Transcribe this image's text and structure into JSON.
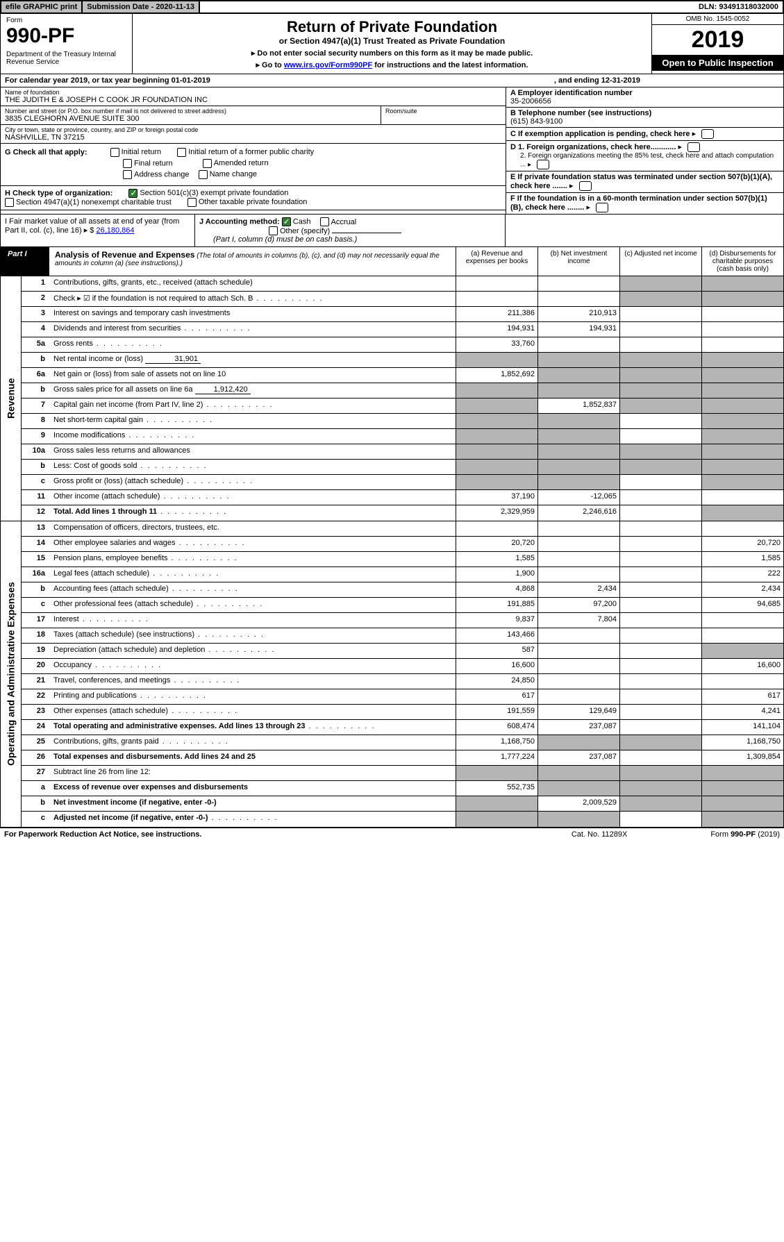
{
  "topbar": {
    "efile": "efile GRAPHIC print",
    "subdate_lbl": "Submission Date - 2020-11-13",
    "dln": "DLN: 93491318032000"
  },
  "header": {
    "form": "Form",
    "num": "990-PF",
    "dept": "Department of the Treasury\nInternal Revenue Service",
    "title": "Return of Private Foundation",
    "sub": "or Section 4947(a)(1) Trust Treated as Private Foundation",
    "note1": "▸ Do not enter social security numbers on this form as it may be made public.",
    "note2_pre": "▸ Go to ",
    "note2_link": "www.irs.gov/Form990PF",
    "note2_post": " for instructions and the latest information.",
    "omb": "OMB No. 1545-0052",
    "year": "2019",
    "open": "Open to Public Inspection"
  },
  "cal": {
    "txt": "For calendar year 2019, or tax year beginning 01-01-2019",
    "end": ", and ending 12-31-2019"
  },
  "info": {
    "name_lbl": "Name of foundation",
    "name": "THE JUDITH E & JOSEPH C COOK JR FOUNDATION INC",
    "addr_lbl": "Number and street (or P.O. box number if mail is not delivered to street address)",
    "addr": "3835 CLEGHORN AVENUE SUITE 300",
    "room_lbl": "Room/suite",
    "city_lbl": "City or town, state or province, country, and ZIP or foreign postal code",
    "city": "NASHVILLE, TN  37215",
    "a_lbl": "A Employer identification number",
    "a_val": "35-2006656",
    "b_lbl": "B Telephone number (see instructions)",
    "b_val": "(615) 843-9100",
    "c_lbl": "C If exemption application is pending, check here",
    "d1": "D 1. Foreign organizations, check here............",
    "d2": "2. Foreign organizations meeting the 85% test, check here and attach computation ...",
    "e": "E  If private foundation status was terminated under section 507(b)(1)(A), check here .......",
    "f": "F  If the foundation is in a 60-month termination under section 507(b)(1)(B), check here ........"
  },
  "g": {
    "lbl": "G Check all that apply:",
    "opts": [
      "Initial return",
      "Initial return of a former public charity",
      "Final return",
      "Amended return",
      "Address change",
      "Name change"
    ]
  },
  "h": {
    "lbl": "H Check type of organization:",
    "o1": "Section 501(c)(3) exempt private foundation",
    "o2": "Section 4947(a)(1) nonexempt charitable trust",
    "o3": "Other taxable private foundation"
  },
  "i": {
    "lbl": "I Fair market value of all assets at end of year (from Part II, col. (c), line 16) ▸ $",
    "val": "26,180,864"
  },
  "j": {
    "lbl": "J Accounting method:",
    "cash": "Cash",
    "accrual": "Accrual",
    "other": "Other (specify)",
    "note": "(Part I, column (d) must be on cash basis.)"
  },
  "part1": {
    "tag": "Part I",
    "title": "Analysis of Revenue and Expenses",
    "title_note": "(The total of amounts in columns (b), (c), and (d) may not necessarily equal the amounts in column (a) (see instructions).)",
    "cols": {
      "a": "(a)   Revenue and expenses per books",
      "b": "(b)  Net investment income",
      "c": "(c)  Adjusted net income",
      "d": "(d)  Disbursements for charitable purposes (cash basis only)"
    }
  },
  "side_rev": "Revenue",
  "side_exp": "Operating and Administrative Expenses",
  "rows_rev": [
    {
      "n": "1",
      "d": "Contributions, gifts, grants, etc., received (attach schedule)",
      "a": "",
      "b": "",
      "cg": true,
      "dg": true
    },
    {
      "n": "2",
      "d": "Check ▸ ☑ if the foundation is not required to attach Sch. B",
      "a": "",
      "b": "",
      "cg": true,
      "dg": true,
      "dots": true
    },
    {
      "n": "3",
      "d": "Interest on savings and temporary cash investments",
      "a": "211,386",
      "b": "210,913"
    },
    {
      "n": "4",
      "d": "Dividends and interest from securities",
      "a": "194,931",
      "b": "194,931",
      "dots": true
    },
    {
      "n": "5a",
      "d": "Gross rents",
      "a": "33,760",
      "dots": true
    },
    {
      "n": "b",
      "d": "Net rental income or (loss)",
      "inline": "31,901",
      "ag": true,
      "bg": true,
      "cg": true,
      "dg": true
    },
    {
      "n": "6a",
      "d": "Net gain or (loss) from sale of assets not on line 10",
      "a": "1,852,692",
      "bg": true,
      "cg": true,
      "dg": true
    },
    {
      "n": "b",
      "d": "Gross sales price for all assets on line 6a",
      "inline": "1,912,420",
      "ag": true,
      "bg": true,
      "cg": true,
      "dg": true
    },
    {
      "n": "7",
      "d": "Capital gain net income (from Part IV, line 2)",
      "ag": true,
      "b": "1,852,837",
      "cg": true,
      "dg": true,
      "dots": true
    },
    {
      "n": "8",
      "d": "Net short-term capital gain",
      "ag": true,
      "bg": true,
      "dg": true,
      "dots": true
    },
    {
      "n": "9",
      "d": "Income modifications",
      "ag": true,
      "bg": true,
      "dg": true,
      "dots": true
    },
    {
      "n": "10a",
      "d": "Gross sales less returns and allowances",
      "ag": true,
      "bg": true,
      "cg": true,
      "dg": true,
      "box": true
    },
    {
      "n": "b",
      "d": "Less: Cost of goods sold",
      "ag": true,
      "bg": true,
      "cg": true,
      "dg": true,
      "dots": true,
      "box": true
    },
    {
      "n": "c",
      "d": "Gross profit or (loss) (attach schedule)",
      "ag": true,
      "bg": true,
      "dg": true,
      "dots": true
    },
    {
      "n": "11",
      "d": "Other income (attach schedule)",
      "a": "37,190",
      "b": "-12,065",
      "dots": true
    },
    {
      "n": "12",
      "d": "Total. Add lines 1 through 11",
      "a": "2,329,959",
      "b": "2,246,616",
      "dg": true,
      "bold": true,
      "dots": true
    }
  ],
  "rows_exp": [
    {
      "n": "13",
      "d": "Compensation of officers, directors, trustees, etc."
    },
    {
      "n": "14",
      "d": "Other employee salaries and wages",
      "a": "20,720",
      "dv": "20,720",
      "dots": true
    },
    {
      "n": "15",
      "d": "Pension plans, employee benefits",
      "a": "1,585",
      "dv": "1,585",
      "dots": true
    },
    {
      "n": "16a",
      "d": "Legal fees (attach schedule)",
      "a": "1,900",
      "dv": "222",
      "dots": true
    },
    {
      "n": "b",
      "d": "Accounting fees (attach schedule)",
      "a": "4,868",
      "b": "2,434",
      "dv": "2,434",
      "dots": true
    },
    {
      "n": "c",
      "d": "Other professional fees (attach schedule)",
      "a": "191,885",
      "b": "97,200",
      "dv": "94,685",
      "dots": true
    },
    {
      "n": "17",
      "d": "Interest",
      "a": "9,837",
      "b": "7,804",
      "dots": true
    },
    {
      "n": "18",
      "d": "Taxes (attach schedule) (see instructions)",
      "a": "143,466",
      "dots": true
    },
    {
      "n": "19",
      "d": "Depreciation (attach schedule) and depletion",
      "a": "587",
      "dg": true,
      "dots": true
    },
    {
      "n": "20",
      "d": "Occupancy",
      "a": "16,600",
      "dv": "16,600",
      "dots": true
    },
    {
      "n": "21",
      "d": "Travel, conferences, and meetings",
      "a": "24,850",
      "dots": true
    },
    {
      "n": "22",
      "d": "Printing and publications",
      "a": "617",
      "dv": "617",
      "dots": true
    },
    {
      "n": "23",
      "d": "Other expenses (attach schedule)",
      "a": "191,559",
      "b": "129,649",
      "dv": "4,241",
      "dots": true
    },
    {
      "n": "24",
      "d": "Total operating and administrative expenses. Add lines 13 through 23",
      "a": "608,474",
      "b": "237,087",
      "dv": "141,104",
      "bold": true,
      "dots": true
    },
    {
      "n": "25",
      "d": "Contributions, gifts, grants paid",
      "a": "1,168,750",
      "bg": true,
      "cg": true,
      "dv": "1,168,750",
      "dots": true
    },
    {
      "n": "26",
      "d": "Total expenses and disbursements. Add lines 24 and 25",
      "a": "1,777,224",
      "b": "237,087",
      "dv": "1,309,854",
      "bold": true
    },
    {
      "n": "27",
      "d": "Subtract line 26 from line 12:",
      "ag": true,
      "bg": true,
      "cg": true,
      "dg": true
    },
    {
      "n": "a",
      "d": "Excess of revenue over expenses and disbursements",
      "a": "552,735",
      "bg": true,
      "cg": true,
      "dg": true,
      "bold": true
    },
    {
      "n": "b",
      "d": "Net investment income (if negative, enter -0-)",
      "ag": true,
      "b": "2,009,529",
      "cg": true,
      "dg": true,
      "bold": true
    },
    {
      "n": "c",
      "d": "Adjusted net income (if negative, enter -0-)",
      "ag": true,
      "bg": true,
      "dg": true,
      "bold": true,
      "dots": true
    }
  ],
  "footer": {
    "l": "For Paperwork Reduction Act Notice, see instructions.",
    "c": "Cat. No. 11289X",
    "r": "Form 990-PF (2019)"
  }
}
